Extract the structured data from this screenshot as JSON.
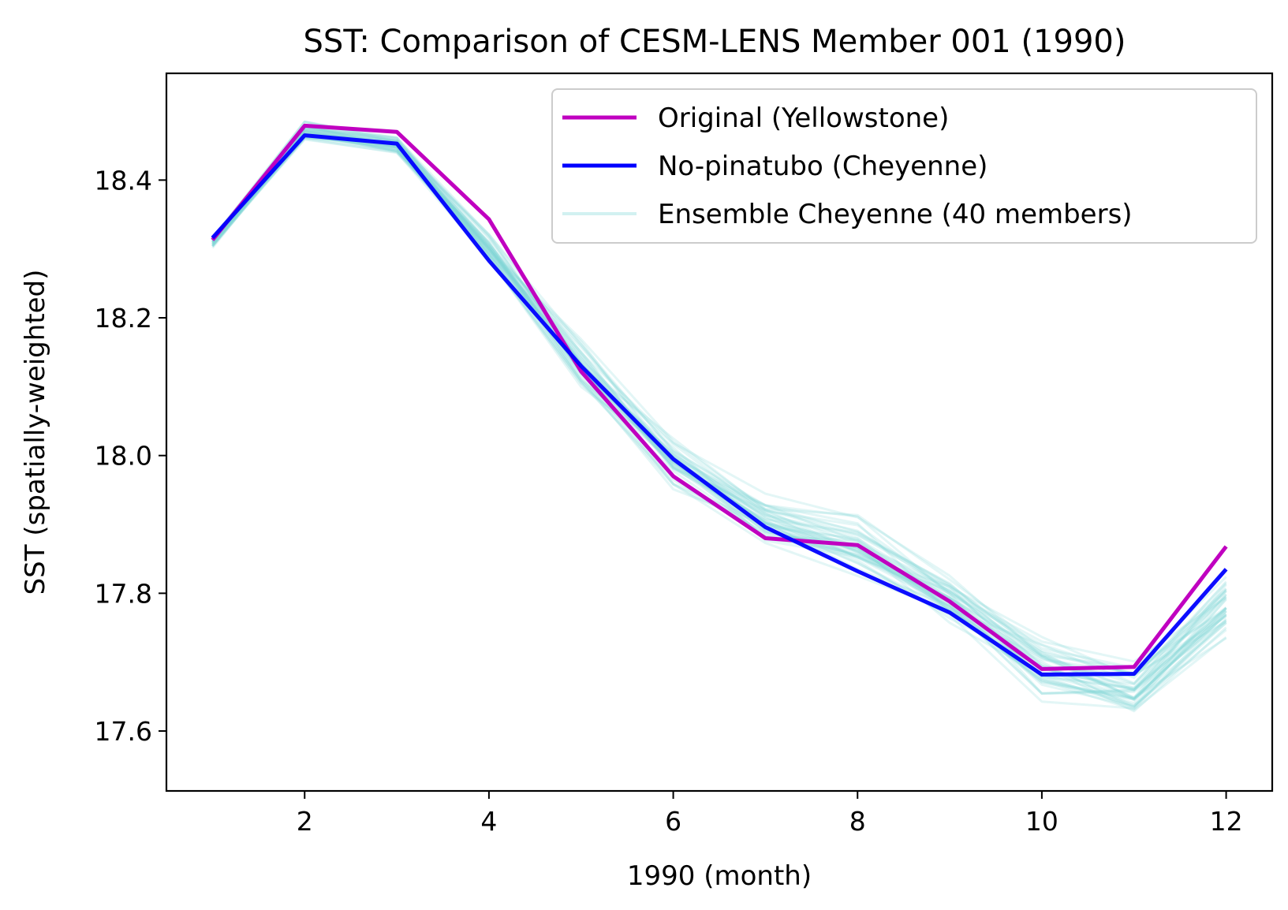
{
  "chart_data": {
    "type": "line",
    "title": "SST: Comparison of CESM-LENS Member 001 (1990)",
    "xlabel": "1990 (month)",
    "ylabel": "SST (spatially-weighted)",
    "xlim": [
      0.5,
      12.5
    ],
    "ylim": [
      17.513,
      18.555
    ],
    "xticks": [
      2,
      4,
      6,
      8,
      10,
      12
    ],
    "yticks": [
      17.6,
      17.8,
      18.0,
      18.2,
      18.4
    ],
    "ytick_labels": [
      "17.6",
      "17.8",
      "18.0",
      "18.2",
      "18.4"
    ],
    "x": [
      1,
      2,
      3,
      4,
      5,
      6,
      7,
      8,
      9,
      10,
      11,
      12
    ],
    "grid": false,
    "legend_position": "top-right",
    "series": [
      {
        "name": "Original (Yellowstone)",
        "color": "#c000c0",
        "values": [
          18.313,
          18.479,
          18.47,
          18.343,
          18.122,
          17.97,
          17.88,
          17.87,
          17.788,
          17.69,
          17.693,
          17.868
        ]
      },
      {
        "name": "No-pinatubo (Cheyenne)",
        "color": "#0000ff",
        "values": [
          18.316,
          18.465,
          18.453,
          18.283,
          18.13,
          17.995,
          17.896,
          17.832,
          17.772,
          17.682,
          17.683,
          17.835
        ]
      }
    ],
    "ensemble": {
      "name": "Ensemble Cheyenne (40 members)",
      "color": "#7fd6d6",
      "member_count": 40,
      "mean": [
        18.31,
        18.47,
        18.45,
        18.3,
        18.13,
        17.99,
        17.905,
        17.87,
        17.79,
        17.69,
        17.66,
        17.78
      ],
      "spread": [
        0.008,
        0.015,
        0.015,
        0.02,
        0.04,
        0.04,
        0.035,
        0.045,
        0.04,
        0.045,
        0.04,
        0.045
      ]
    }
  }
}
